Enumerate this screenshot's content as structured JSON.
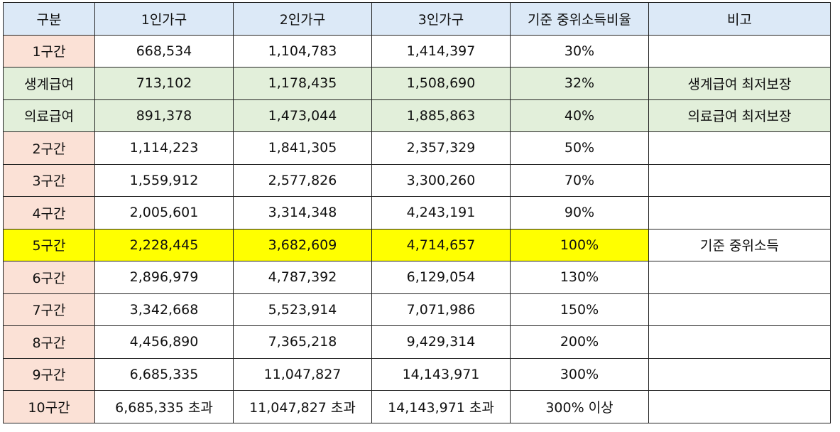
{
  "header": [
    "구분",
    "1인가구",
    "2인가구",
    "3인가구",
    "기준 중위소득비율",
    "비고"
  ],
  "rows": [
    {
      "style": "normal",
      "cells": [
        "1구간",
        "668,534",
        "1,104,783",
        "1,414,397",
        "30%",
        ""
      ]
    },
    {
      "style": "benefit",
      "cells": [
        "생계급여",
        "713,102",
        "1,178,435",
        "1,508,690",
        "32%",
        "생계급여 최저보장"
      ]
    },
    {
      "style": "benefit",
      "cells": [
        "의료급여",
        "891,378",
        "1,473,044",
        "1,885,863",
        "40%",
        "의료급여 최저보장"
      ]
    },
    {
      "style": "normal",
      "cells": [
        "2구간",
        "1,114,223",
        "1,841,305",
        "2,357,329",
        "50%",
        ""
      ]
    },
    {
      "style": "normal",
      "cells": [
        "3구간",
        "1,559,912",
        "2,577,826",
        "3,300,260",
        "70%",
        ""
      ]
    },
    {
      "style": "normal",
      "cells": [
        "4구간",
        "2,005,601",
        "3,314,348",
        "4,243,191",
        "90%",
        ""
      ]
    },
    {
      "style": "highlight",
      "cells": [
        "5구간",
        "2,228,445",
        "3,682,609",
        "4,714,657",
        "100%",
        "기준 중위소득"
      ]
    },
    {
      "style": "normal",
      "cells": [
        "6구간",
        "2,896,979",
        "4,787,392",
        "6,129,054",
        "130%",
        ""
      ]
    },
    {
      "style": "normal",
      "cells": [
        "7구간",
        "3,342,668",
        "5,523,914",
        "7,071,986",
        "150%",
        ""
      ]
    },
    {
      "style": "normal",
      "cells": [
        "8구간",
        "4,456,890",
        "7,365,218",
        "9,429,314",
        "200%",
        ""
      ]
    },
    {
      "style": "normal",
      "cells": [
        "9구간",
        "6,685,335",
        "11,047,827",
        "14,143,971",
        "300%",
        ""
      ]
    },
    {
      "style": "normal",
      "cells": [
        "10구간",
        "6,685,335 초과",
        "11,047,827 초과",
        "14,143,971 초과",
        "300% 이상",
        ""
      ]
    }
  ],
  "colors": {
    "header_bg": "#dce9f7",
    "row_label_bg": "#fbe1d6",
    "benefit_row_bg": "#e2efda",
    "highlight_row_bg": "#ffff00",
    "border": "#222222"
  }
}
